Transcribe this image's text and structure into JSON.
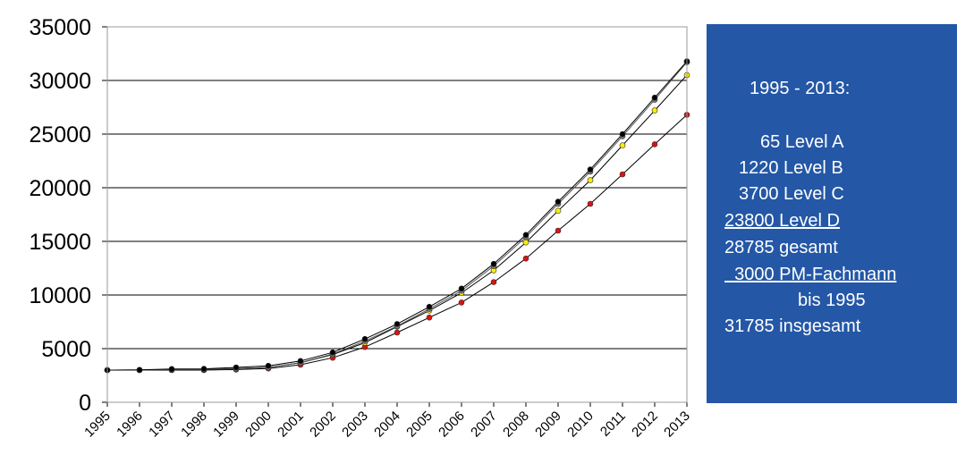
{
  "chart_data": {
    "type": "line",
    "x": [
      "1995",
      "1996",
      "1997",
      "1998",
      "1999",
      "2000",
      "2001",
      "2002",
      "2003",
      "2004",
      "2005",
      "2006",
      "2007",
      "2008",
      "2009",
      "2010",
      "2011",
      "2012",
      "2013"
    ],
    "ylim": [
      0,
      35000
    ],
    "yticks": [
      "0",
      "5000",
      "10000",
      "15000",
      "20000",
      "25000",
      "30000",
      "35000"
    ],
    "grid": true,
    "series": [
      {
        "color": "#000000",
        "marker": "#000000",
        "values": [
          3000,
          3020,
          3100,
          3120,
          3250,
          3400,
          3850,
          4650,
          5900,
          7300,
          8900,
          10600,
          12900,
          15600,
          18700,
          21700,
          25000,
          28400,
          31785
        ]
      },
      {
        "color": "#555555",
        "marker": "#777777",
        "values": [
          3000,
          3010,
          3050,
          3070,
          3150,
          3250,
          3700,
          4500,
          5700,
          7100,
          8700,
          10400,
          12700,
          15400,
          18500,
          21500,
          24800,
          28200,
          31700
        ]
      },
      {
        "color": "#000000",
        "marker": "#ffee00",
        "values": [
          3000,
          3010,
          3060,
          3060,
          3150,
          3250,
          3680,
          4450,
          5550,
          7050,
          8550,
          10200,
          12300,
          14900,
          17850,
          20700,
          23950,
          27200,
          30500
        ]
      },
      {
        "color": "#000000",
        "marker": "#dd1111",
        "values": [
          3000,
          3000,
          3000,
          3000,
          3050,
          3150,
          3500,
          4150,
          5150,
          6500,
          7900,
          9300,
          11200,
          13400,
          16000,
          18500,
          21250,
          24050,
          26800
        ]
      }
    ]
  },
  "info": {
    "title": "1995 - 2013:",
    "l1": "65 Level A",
    "l2": "1220 Level B",
    "l3": "3700 Level C",
    "l4": "23800 Level D",
    "l5": "28785 gesamt",
    "l6": "  3000 PM-Fachmann",
    "l7": "bis 1995",
    "l8": "31785 insgesamt"
  }
}
